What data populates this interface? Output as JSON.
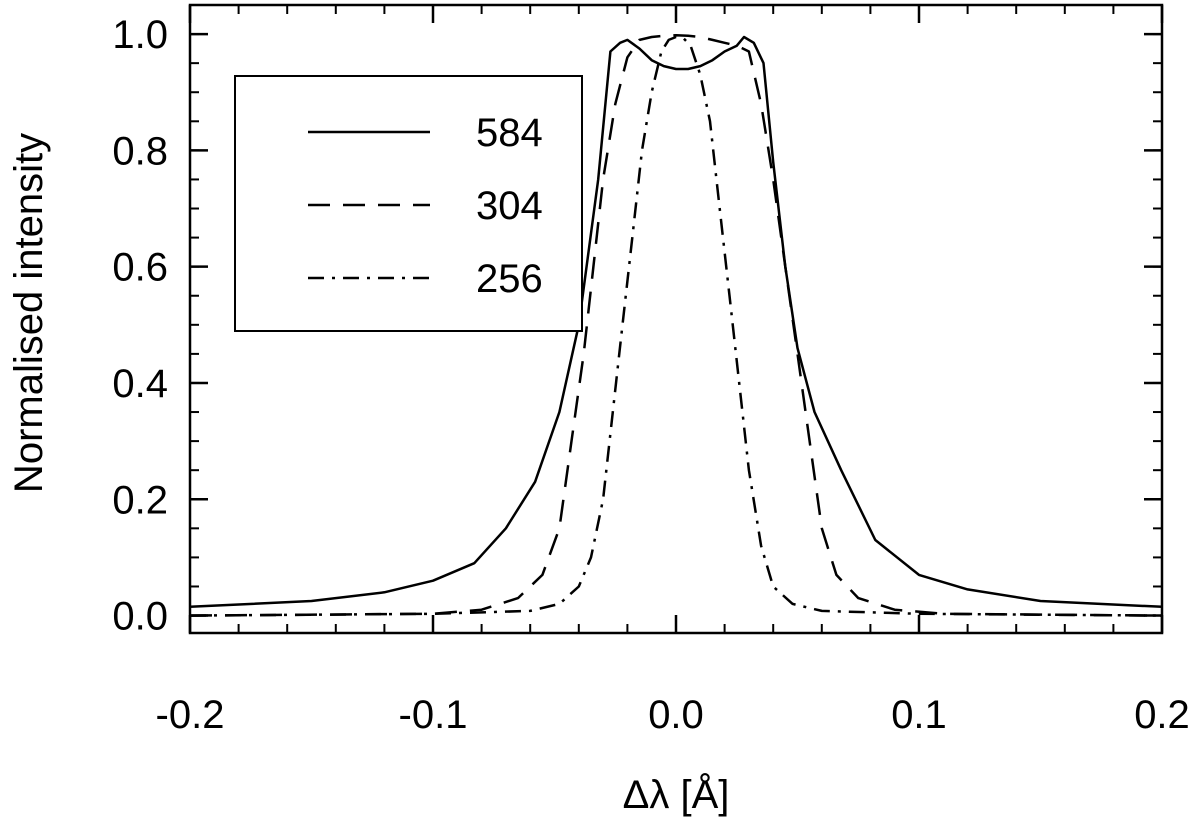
{
  "chart_data": {
    "type": "line",
    "title": "",
    "xlabel": "Δλ [Å]",
    "ylabel": "Normalised intensity",
    "xlim": [
      -0.2,
      0.2
    ],
    "ylim": [
      -0.03,
      1.05
    ],
    "xticks": [
      {
        "value": -0.2,
        "label": "-0.2"
      },
      {
        "value": -0.1,
        "label": "-0.1"
      },
      {
        "value": 0.0,
        "label": "0.0"
      },
      {
        "value": 0.1,
        "label": "0.1"
      },
      {
        "value": 0.2,
        "label": "0.2"
      }
    ],
    "yticks": [
      {
        "value": 0.0,
        "label": "0.0"
      },
      {
        "value": 0.2,
        "label": "0.2"
      },
      {
        "value": 0.4,
        "label": "0.4"
      },
      {
        "value": 0.6,
        "label": "0.6"
      },
      {
        "value": 0.8,
        "label": "0.8"
      },
      {
        "value": 1.0,
        "label": "1.0"
      }
    ],
    "x_minor_step": 0.02,
    "y_minor_step": 0.05,
    "grid": false,
    "legend_position": "top-left",
    "series": [
      {
        "name": "584",
        "style": "solid",
        "x": [
          -0.2,
          -0.15,
          -0.12,
          -0.1,
          -0.083,
          -0.07,
          -0.058,
          -0.048,
          -0.04,
          -0.032,
          -0.027,
          -0.023,
          -0.02,
          -0.015,
          -0.01,
          -0.005,
          0.0,
          0.005,
          0.01,
          0.015,
          0.02,
          0.025,
          0.028,
          0.032,
          0.036,
          0.04,
          0.045,
          0.05,
          0.057,
          0.068,
          0.082,
          0.1,
          0.12,
          0.15,
          0.2
        ],
        "y": [
          0.015,
          0.025,
          0.04,
          0.06,
          0.09,
          0.15,
          0.23,
          0.35,
          0.5,
          0.75,
          0.97,
          0.985,
          0.99,
          0.975,
          0.955,
          0.945,
          0.94,
          0.94,
          0.945,
          0.955,
          0.97,
          0.98,
          0.995,
          0.985,
          0.95,
          0.78,
          0.6,
          0.46,
          0.35,
          0.25,
          0.13,
          0.07,
          0.045,
          0.025,
          0.015
        ]
      },
      {
        "name": "304",
        "style": "dashed",
        "x": [
          -0.2,
          -0.1,
          -0.08,
          -0.065,
          -0.055,
          -0.048,
          -0.043,
          -0.038,
          -0.034,
          -0.03,
          -0.025,
          -0.02,
          -0.015,
          -0.01,
          -0.005,
          0.0,
          0.005,
          0.01,
          0.015,
          0.02,
          0.025,
          0.03,
          0.035,
          0.04,
          0.045,
          0.05,
          0.055,
          0.06,
          0.066,
          0.075,
          0.09,
          0.11,
          0.2
        ],
        "y": [
          0.0,
          0.003,
          0.01,
          0.03,
          0.07,
          0.15,
          0.3,
          0.45,
          0.6,
          0.75,
          0.88,
          0.96,
          0.99,
          0.995,
          0.997,
          0.998,
          0.997,
          0.995,
          0.99,
          0.985,
          0.98,
          0.97,
          0.88,
          0.75,
          0.6,
          0.45,
          0.3,
          0.15,
          0.07,
          0.03,
          0.01,
          0.003,
          0.0
        ]
      },
      {
        "name": "256",
        "style": "dashdot",
        "x": [
          -0.2,
          -0.1,
          -0.06,
          -0.048,
          -0.04,
          -0.035,
          -0.03,
          -0.026,
          -0.022,
          -0.018,
          -0.014,
          -0.01,
          -0.006,
          -0.003,
          0.0,
          0.003,
          0.006,
          0.01,
          0.014,
          0.018,
          0.022,
          0.026,
          0.03,
          0.035,
          0.04,
          0.048,
          0.06,
          0.1,
          0.2
        ],
        "y": [
          0.0,
          0.003,
          0.008,
          0.02,
          0.05,
          0.1,
          0.2,
          0.35,
          0.5,
          0.65,
          0.8,
          0.9,
          0.97,
          0.99,
          0.995,
          0.993,
          0.98,
          0.93,
          0.85,
          0.7,
          0.55,
          0.4,
          0.25,
          0.12,
          0.05,
          0.02,
          0.008,
          0.003,
          0.0
        ]
      }
    ]
  }
}
